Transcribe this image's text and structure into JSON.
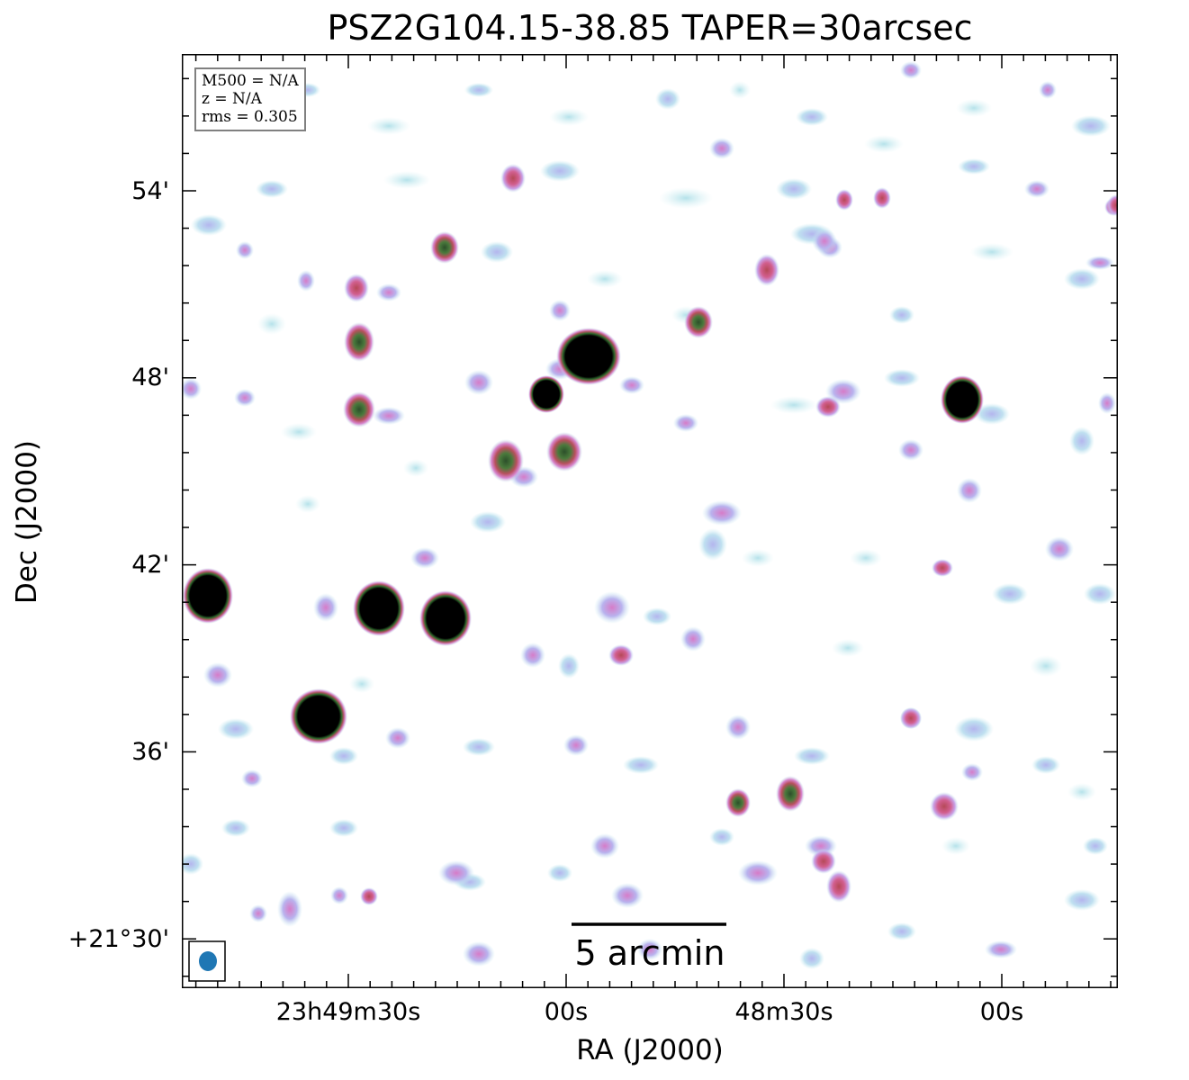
{
  "title": "PSZ2G104.15-38.85 TAPER=30arcsec",
  "info_box": {
    "mass": "M500 = N/A",
    "redshift": "z = N/A",
    "rms": "rms = 0.305"
  },
  "scale_bar": {
    "label": "5 arcmin"
  },
  "axes": {
    "x_title": "RA (J2000)",
    "y_title": "Dec (J2000)",
    "x_ticks": [
      "23h49m30s",
      "00s",
      "48m30s",
      "00s"
    ],
    "y_ticks": [
      "54'",
      "48'",
      "42'",
      "36'",
      "+21°30'"
    ]
  },
  "beam": {
    "shape": "ellipse",
    "color": "#1f77b4"
  },
  "colormap": {
    "description_colors": [
      "#ffffff",
      "#b8e4ec",
      "#b9b4ec",
      "#d77fc8",
      "#c45a6a",
      "#3f7a3a",
      "#000000"
    ]
  }
}
